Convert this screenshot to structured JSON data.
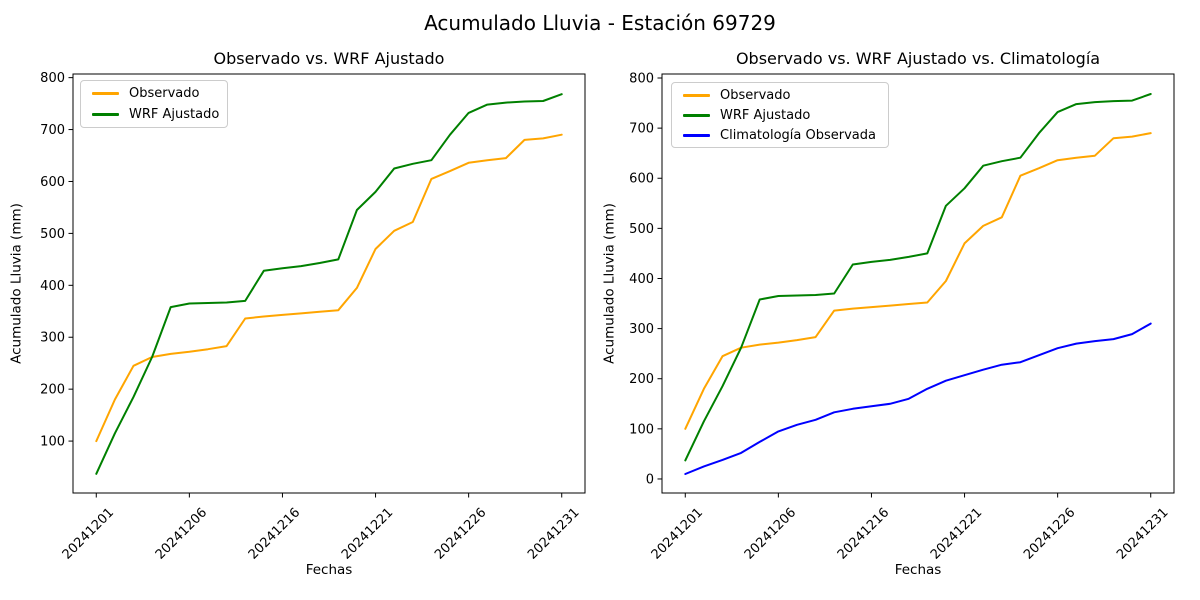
{
  "figure": {
    "suptitle": "Acumulado Lluvia - Estación 69729",
    "background_color": "#ffffff",
    "text_color": "#000000"
  },
  "chart_data": [
    {
      "type": "line",
      "title": "Observado vs. WRF Ajustado",
      "xlabel": "Fechas",
      "ylabel": "Acumulado Lluvia (mm)",
      "x_tick_labels": [
        "20241201",
        "20241206",
        "20241216",
        "20241221",
        "20241226",
        "20241231"
      ],
      "x_tick_positions": [
        0,
        5,
        10,
        15,
        20,
        25
      ],
      "x_tick_rotation_deg": 45,
      "n_points": 26,
      "xlim_index": [
        -1.25,
        26.25
      ],
      "ylim": [
        0,
        807
      ],
      "y_ticks": [
        100,
        200,
        300,
        400,
        500,
        600,
        700,
        800
      ],
      "grid": false,
      "legend_position": "upper left",
      "series": [
        {
          "name": "Observado",
          "color": "#FFA500",
          "values": [
            100,
            180,
            245,
            262,
            268,
            272,
            277,
            283,
            336,
            340,
            343,
            346,
            349,
            352,
            395,
            470,
            505,
            522,
            605,
            620,
            636,
            641,
            645,
            680,
            683,
            690
          ]
        },
        {
          "name": "WRF Ajustado",
          "color": "#008000",
          "values": [
            37,
            115,
            185,
            262,
            358,
            365,
            366,
            367,
            370,
            428,
            433,
            437,
            443,
            450,
            545,
            580,
            625,
            634,
            641,
            690,
            732,
            748,
            752,
            754,
            755,
            768
          ]
        }
      ]
    },
    {
      "type": "line",
      "title": "Observado vs. WRF Ajustado vs. Climatología",
      "xlabel": "Fechas",
      "ylabel": "Acumulado Lluvia (mm)",
      "x_tick_labels": [
        "20241201",
        "20241206",
        "20241216",
        "20241221",
        "20241226",
        "20241231"
      ],
      "x_tick_positions": [
        0,
        5,
        10,
        15,
        20,
        25
      ],
      "x_tick_rotation_deg": 45,
      "n_points": 26,
      "xlim_index": [
        -1.25,
        26.25
      ],
      "ylim": [
        -28,
        808
      ],
      "y_ticks": [
        0,
        100,
        200,
        300,
        400,
        500,
        600,
        700,
        800
      ],
      "grid": false,
      "legend_position": "upper left",
      "series": [
        {
          "name": "Observado",
          "color": "#FFA500",
          "values": [
            100,
            180,
            245,
            262,
            268,
            272,
            277,
            283,
            336,
            340,
            343,
            346,
            349,
            352,
            395,
            470,
            505,
            522,
            605,
            620,
            636,
            641,
            645,
            680,
            683,
            690
          ]
        },
        {
          "name": "WRF Ajustado",
          "color": "#008000",
          "values": [
            37,
            115,
            185,
            262,
            358,
            365,
            366,
            367,
            370,
            428,
            433,
            437,
            443,
            450,
            545,
            580,
            625,
            634,
            641,
            690,
            732,
            748,
            752,
            754,
            755,
            768
          ]
        },
        {
          "name": "Climatología Observada",
          "color": "#0000FF",
          "values": [
            10,
            25,
            38,
            52,
            74,
            95,
            108,
            118,
            133,
            140,
            145,
            150,
            160,
            180,
            196,
            207,
            218,
            228,
            233,
            247,
            261,
            270,
            275,
            279,
            289,
            310
          ]
        }
      ]
    }
  ]
}
